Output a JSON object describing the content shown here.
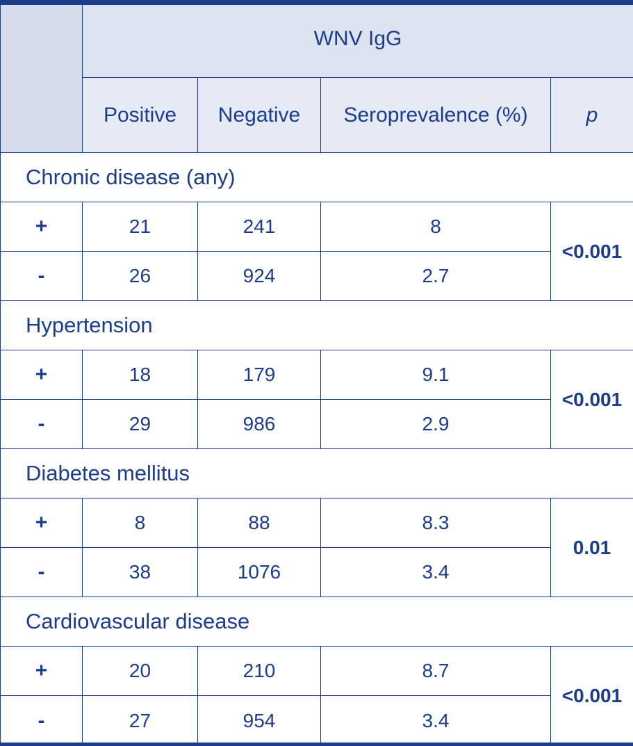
{
  "header": {
    "group_label": "WNV IgG",
    "columns": [
      "Positive",
      "Negative",
      "Seroprevalence (%)",
      "p"
    ]
  },
  "sections": [
    {
      "title": "Chronic disease (any)",
      "p": "<0.001",
      "rows": [
        {
          "sign": "+",
          "positive": "21",
          "negative": "241",
          "seroprevalence": "8"
        },
        {
          "sign": "-",
          "positive": "26",
          "negative": "924",
          "seroprevalence": "2.7"
        }
      ]
    },
    {
      "title": "Hypertension",
      "p": "<0.001",
      "rows": [
        {
          "sign": "+",
          "positive": "18",
          "negative": "179",
          "seroprevalence": "9.1"
        },
        {
          "sign": "-",
          "positive": "29",
          "negative": "986",
          "seroprevalence": "2.9"
        }
      ]
    },
    {
      "title": "Diabetes mellitus",
      "p": "0.01",
      "rows": [
        {
          "sign": "+",
          "positive": "8",
          "negative": "88",
          "seroprevalence": "8.3"
        },
        {
          "sign": "-",
          "positive": "38",
          "negative": "1076",
          "seroprevalence": "3.4"
        }
      ]
    },
    {
      "title": "Cardiovascular disease",
      "p": "<0.001",
      "rows": [
        {
          "sign": "+",
          "positive": "20",
          "negative": "210",
          "seroprevalence": "8.7"
        },
        {
          "sign": "-",
          "positive": "27",
          "negative": "954",
          "seroprevalence": "3.4"
        }
      ]
    }
  ]
}
